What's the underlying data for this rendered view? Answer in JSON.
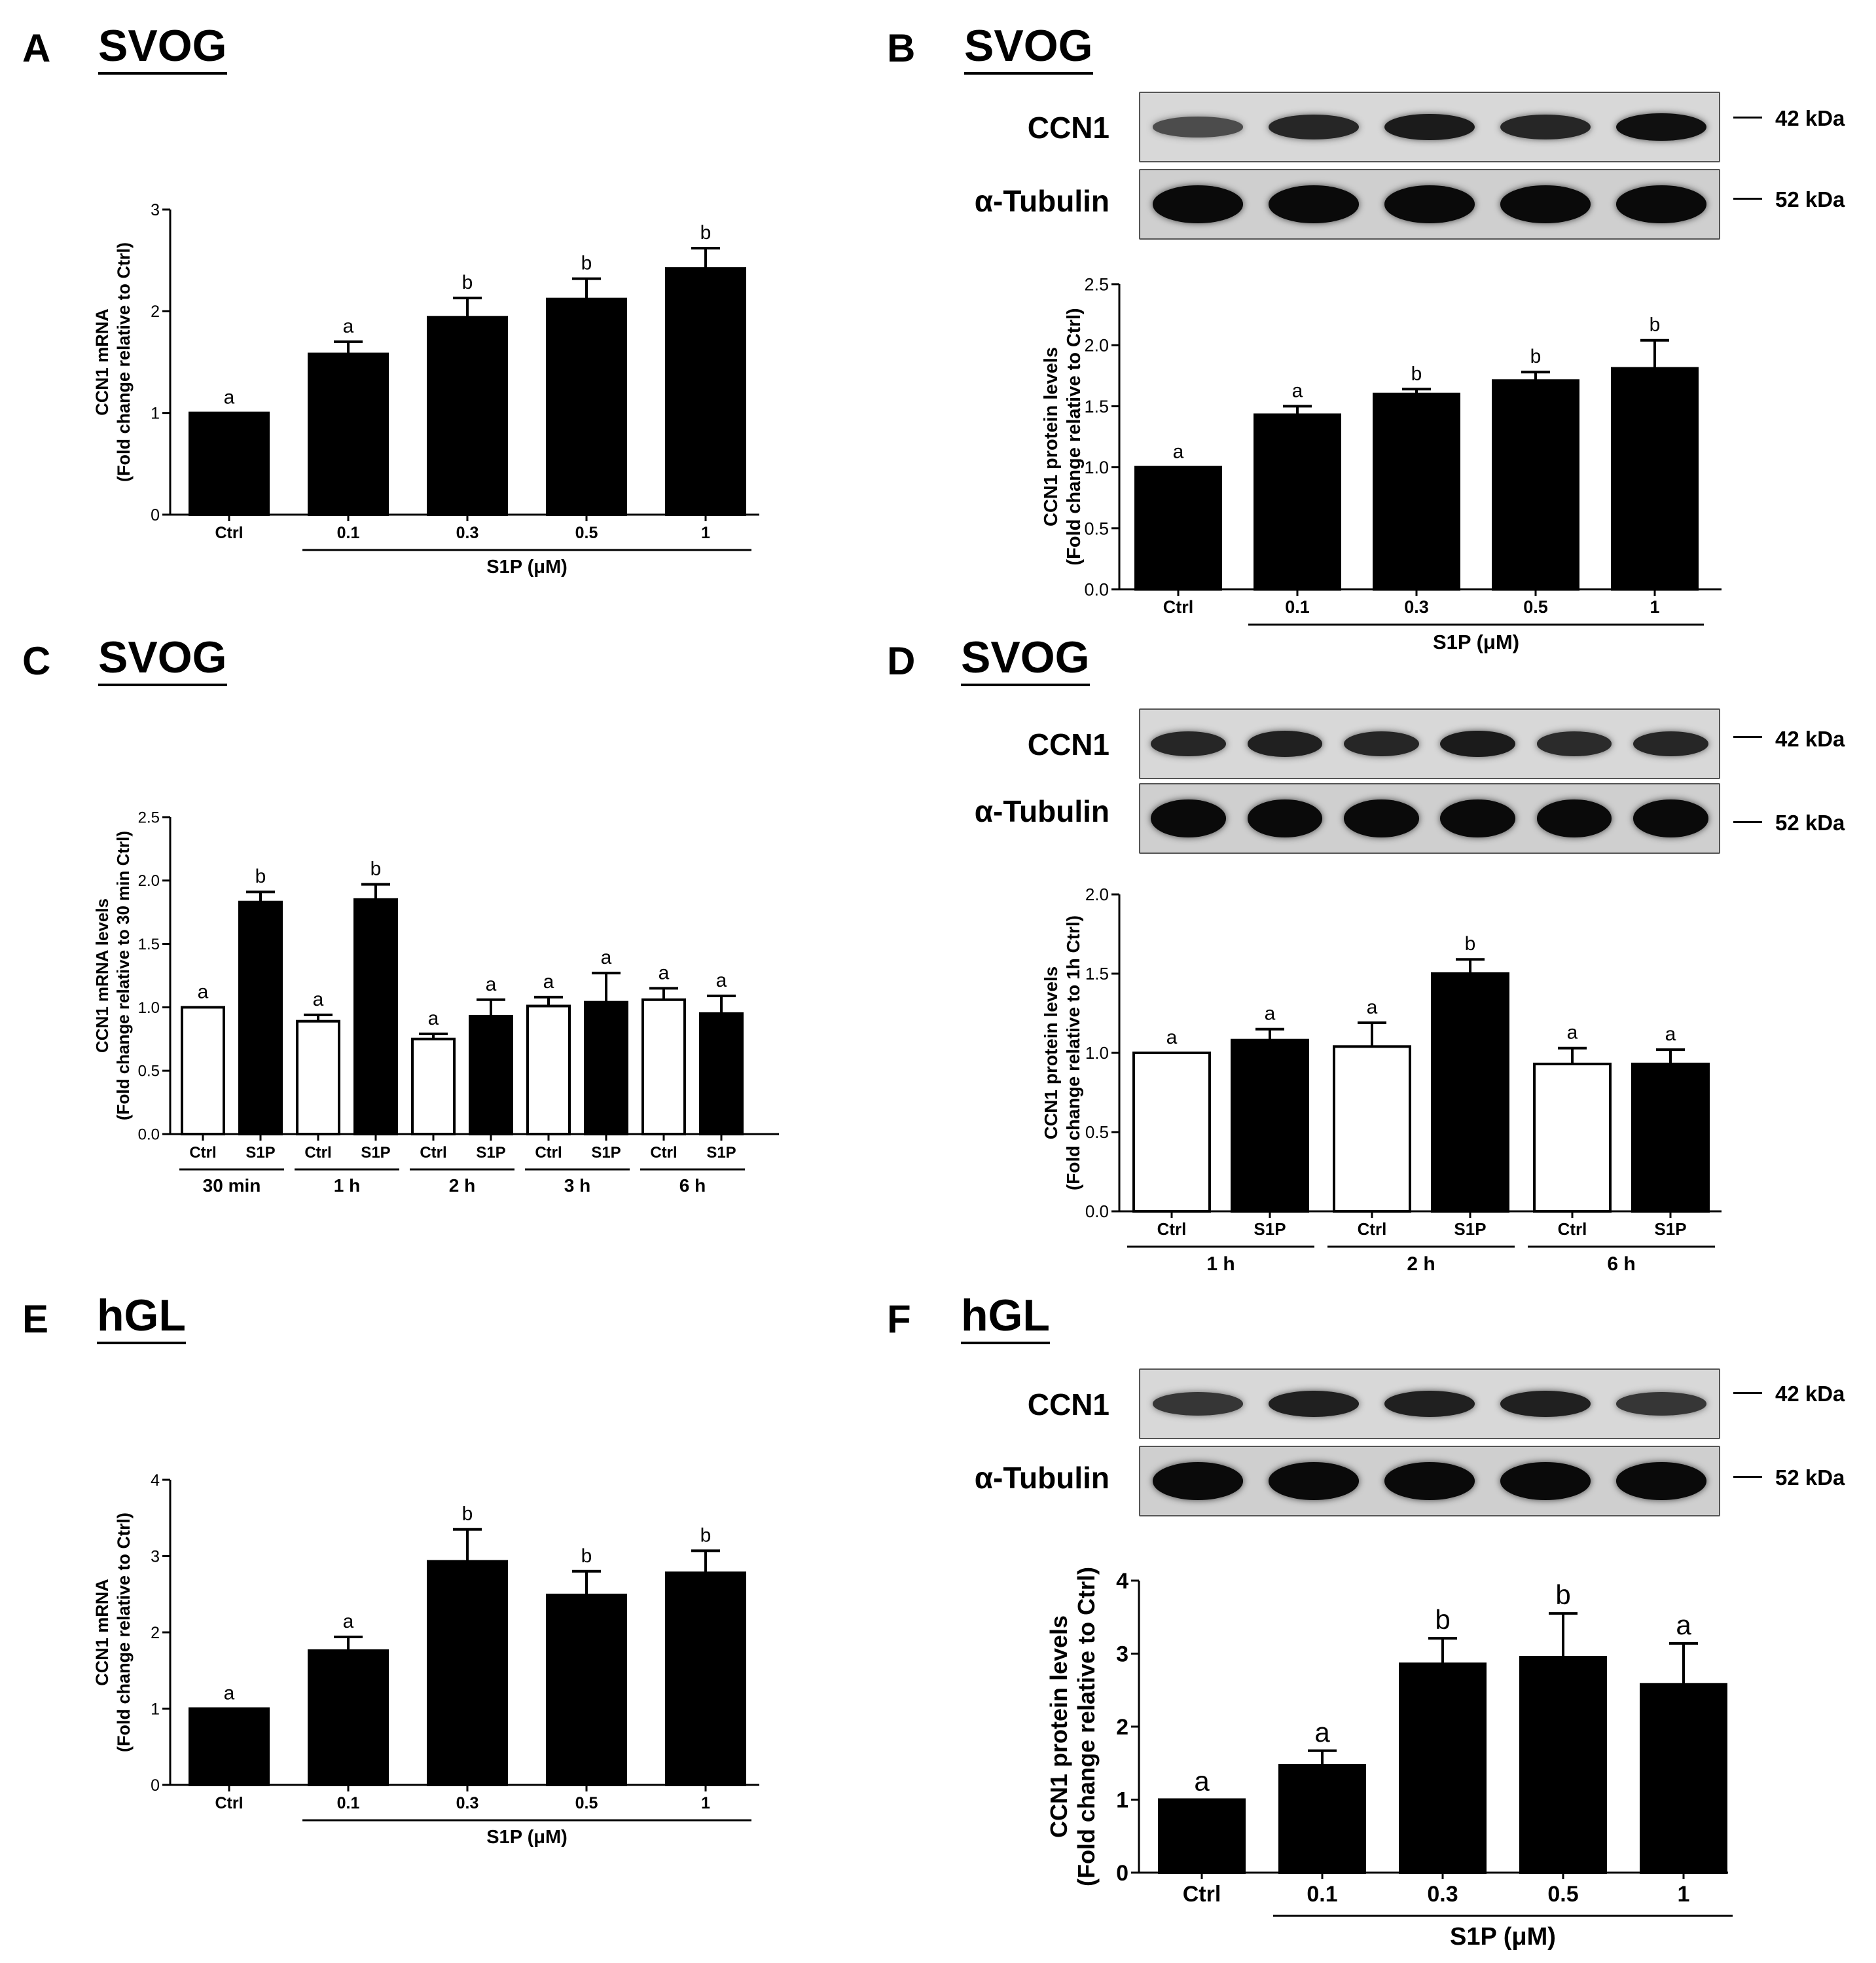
{
  "colors": {
    "bar_filled": "#000000",
    "bar_open": "#ffffff",
    "axis": "#000000"
  },
  "panels": [
    {
      "id": "A",
      "label": "A",
      "title": "SVOG"
    },
    {
      "id": "B",
      "label": "B",
      "title": "SVOG"
    },
    {
      "id": "C",
      "label": "C",
      "title": "SVOG"
    },
    {
      "id": "D",
      "label": "D",
      "title": "SVOG"
    },
    {
      "id": "E",
      "label": "E",
      "title": "hGL"
    },
    {
      "id": "F",
      "label": "F",
      "title": "hGL"
    }
  ],
  "blots": {
    "B": {
      "lanes": 5,
      "rows": [
        {
          "label": "CCN1",
          "mw": "42 kDa",
          "intensity": [
            0.4,
            0.75,
            0.85,
            0.75,
            0.95
          ]
        },
        {
          "label": "α-Tubulin",
          "mw": "52 kDa",
          "intensity": [
            1,
            1,
            1,
            1,
            1
          ]
        }
      ]
    },
    "D": {
      "lanes": 6,
      "rows": [
        {
          "label": "CCN1",
          "mw": "42 kDa",
          "intensity": [
            0.75,
            0.8,
            0.75,
            0.85,
            0.7,
            0.75
          ]
        },
        {
          "label": "α-Tubulin",
          "mw": "52 kDa",
          "intensity": [
            1,
            1,
            1,
            1,
            1,
            1
          ]
        }
      ]
    },
    "F": {
      "lanes": 5,
      "rows": [
        {
          "label": "CCN1",
          "mw": "42 kDa",
          "intensity": [
            0.6,
            0.8,
            0.8,
            0.8,
            0.6
          ]
        },
        {
          "label": "α-Tubulin",
          "mw": "52 kDa",
          "intensity": [
            1,
            1,
            1,
            1,
            1
          ]
        }
      ]
    }
  },
  "chart_data": [
    {
      "panel": "A",
      "type": "bar",
      "ylabel_line1": "CCN1 mRNA",
      "ylabel_line2": "(Fold change relative to Ctrl)",
      "ylim": [
        0,
        3
      ],
      "yticks": [
        "0",
        "1",
        "2",
        "3"
      ],
      "categories": [
        "Ctrl",
        "0.1",
        "0.3",
        "0.5",
        "1"
      ],
      "values": [
        1.0,
        1.58,
        1.94,
        2.12,
        2.42
      ],
      "errors": [
        0.0,
        0.12,
        0.19,
        0.2,
        0.2
      ],
      "letters": [
        "a",
        "a",
        "b",
        "b",
        "b"
      ],
      "fills": [
        "black",
        "black",
        "black",
        "black",
        "black"
      ],
      "groups": [
        {
          "label": "S1P (μM)",
          "from": 1,
          "to": 4
        }
      ]
    },
    {
      "panel": "B",
      "type": "bar",
      "ylabel_line1": "CCN1 protein levels",
      "ylabel_line2": "(Fold change relative to Ctrl)",
      "ylim": [
        0,
        2.5
      ],
      "yticks": [
        "0.0",
        "0.5",
        "1.0",
        "1.5",
        "2.0",
        "2.5"
      ],
      "categories": [
        "Ctrl",
        "0.1",
        "0.3",
        "0.5",
        "1"
      ],
      "values": [
        1.0,
        1.43,
        1.6,
        1.71,
        1.81
      ],
      "errors": [
        0.0,
        0.07,
        0.04,
        0.07,
        0.23
      ],
      "letters": [
        "a",
        "a",
        "b",
        "b",
        "b"
      ],
      "fills": [
        "black",
        "black",
        "black",
        "black",
        "black"
      ],
      "groups": [
        {
          "label": "S1P (μM)",
          "from": 1,
          "to": 4
        }
      ]
    },
    {
      "panel": "C",
      "type": "bar",
      "ylabel_line1": "CCN1 mRNA levels",
      "ylabel_line2": "(Fold change relative to 30 min Ctrl)",
      "ylim": [
        0,
        2.5
      ],
      "yticks": [
        "0.0",
        "0.5",
        "1.0",
        "1.5",
        "2.0",
        "2.5"
      ],
      "categories": [
        "Ctrl",
        "S1P",
        "Ctrl",
        "S1P",
        "Ctrl",
        "S1P",
        "Ctrl",
        "S1P",
        "Ctrl",
        "S1P"
      ],
      "values": [
        1.0,
        1.83,
        0.89,
        1.85,
        0.75,
        0.93,
        1.01,
        1.04,
        1.06,
        0.95
      ],
      "errors": [
        0.0,
        0.08,
        0.05,
        0.12,
        0.04,
        0.13,
        0.07,
        0.23,
        0.09,
        0.14
      ],
      "letters": [
        "a",
        "b",
        "a",
        "b",
        "a",
        "a",
        "a",
        "a",
        "a",
        "a"
      ],
      "fills": [
        "white",
        "black",
        "white",
        "black",
        "white",
        "black",
        "white",
        "black",
        "white",
        "black"
      ],
      "groups": [
        {
          "label": "30 min",
          "from": 0,
          "to": 1
        },
        {
          "label": "1 h",
          "from": 2,
          "to": 3
        },
        {
          "label": "2 h",
          "from": 4,
          "to": 5
        },
        {
          "label": "3 h",
          "from": 6,
          "to": 7
        },
        {
          "label": "6 h",
          "from": 8,
          "to": 9
        }
      ]
    },
    {
      "panel": "D",
      "type": "bar",
      "ylabel_line1": "CCN1 protein levels",
      "ylabel_line2": "(Fold change relative to 1h Ctrl)",
      "ylim": [
        0,
        2.0
      ],
      "yticks": [
        "0.0",
        "0.5",
        "1.0",
        "1.5",
        "2.0"
      ],
      "categories": [
        "Ctrl",
        "S1P",
        "Ctrl",
        "S1P",
        "Ctrl",
        "S1P"
      ],
      "values": [
        1.0,
        1.08,
        1.04,
        1.5,
        0.93,
        0.93
      ],
      "errors": [
        0.0,
        0.07,
        0.15,
        0.09,
        0.1,
        0.09
      ],
      "letters": [
        "a",
        "a",
        "a",
        "b",
        "a",
        "a"
      ],
      "fills": [
        "white",
        "black",
        "white",
        "black",
        "white",
        "black"
      ],
      "groups": [
        {
          "label": "1 h",
          "from": 0,
          "to": 1
        },
        {
          "label": "2 h",
          "from": 2,
          "to": 3
        },
        {
          "label": "6 h",
          "from": 4,
          "to": 5
        }
      ]
    },
    {
      "panel": "E",
      "type": "bar",
      "ylabel_line1": "CCN1 mRNA",
      "ylabel_line2": "(Fold change relative to Ctrl)",
      "ylim": [
        0,
        4
      ],
      "yticks": [
        "0",
        "1",
        "2",
        "3",
        "4"
      ],
      "categories": [
        "Ctrl",
        "0.1",
        "0.3",
        "0.5",
        "1"
      ],
      "values": [
        1.0,
        1.76,
        2.93,
        2.49,
        2.78
      ],
      "errors": [
        0.0,
        0.18,
        0.42,
        0.31,
        0.29
      ],
      "letters": [
        "a",
        "a",
        "b",
        "b",
        "b"
      ],
      "fills": [
        "black",
        "black",
        "black",
        "black",
        "black"
      ],
      "groups": [
        {
          "label": "S1P (μM)",
          "from": 1,
          "to": 4
        }
      ]
    },
    {
      "panel": "F",
      "type": "bar",
      "ylabel_line1": "CCN1 protein levels",
      "ylabel_line2": "(Fold change relative to Ctrl)",
      "ylim": [
        0,
        4
      ],
      "yticks": [
        "0",
        "1",
        "2",
        "3",
        "4"
      ],
      "categories": [
        "Ctrl",
        "0.1",
        "0.3",
        "0.5",
        "1"
      ],
      "values": [
        1.0,
        1.47,
        2.86,
        2.95,
        2.58
      ],
      "errors": [
        0.0,
        0.2,
        0.35,
        0.6,
        0.56
      ],
      "letters": [
        "a",
        "a",
        "b",
        "b",
        "a"
      ],
      "fills": [
        "black",
        "black",
        "black",
        "black",
        "black"
      ],
      "groups": [
        {
          "label": "S1P (μM)",
          "from": 1,
          "to": 4
        }
      ]
    }
  ]
}
